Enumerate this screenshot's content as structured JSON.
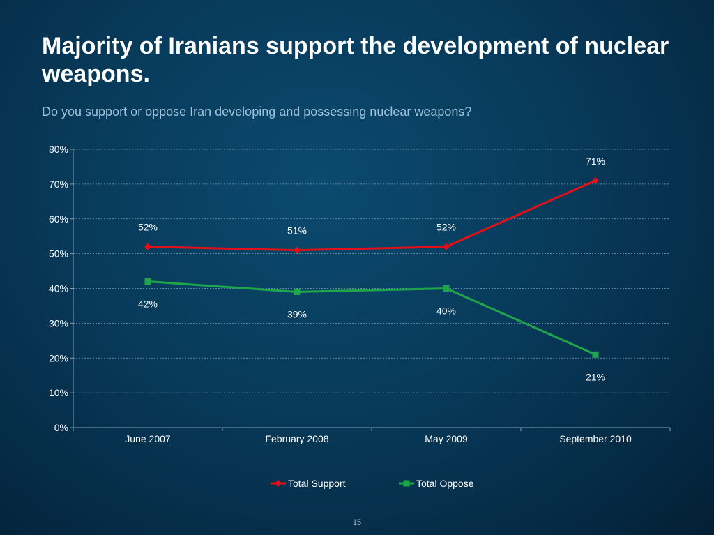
{
  "slide": {
    "title": "Majority of Iranians support the development of nuclear weapons.",
    "subtitle": "Do you support or oppose Iran developing and possessing nuclear weapons?",
    "page_number": "15"
  },
  "colors": {
    "support": "#e3101a",
    "oppose": "#1fa54a",
    "text": "#ffffff",
    "grid": "#7f9fb8"
  },
  "chart_data": {
    "type": "line",
    "categories": [
      "June 2007",
      "February 2008",
      "May 2009",
      "September 2010"
    ],
    "series": [
      {
        "name": "Total Support",
        "values": [
          52,
          51,
          52,
          71
        ],
        "labels": [
          "52%",
          "51%",
          "52%",
          "71%"
        ],
        "marker": "diamond"
      },
      {
        "name": "Total Oppose",
        "values": [
          42,
          39,
          40,
          21
        ],
        "labels": [
          "42%",
          "39%",
          "40%",
          "21%"
        ],
        "marker": "square"
      }
    ],
    "ylim": [
      0,
      80
    ],
    "yticks": [
      "0%",
      "10%",
      "20%",
      "30%",
      "40%",
      "50%",
      "60%",
      "70%",
      "80%"
    ],
    "xlabel": "",
    "ylabel": "",
    "grid": true,
    "legend": "bottom"
  }
}
